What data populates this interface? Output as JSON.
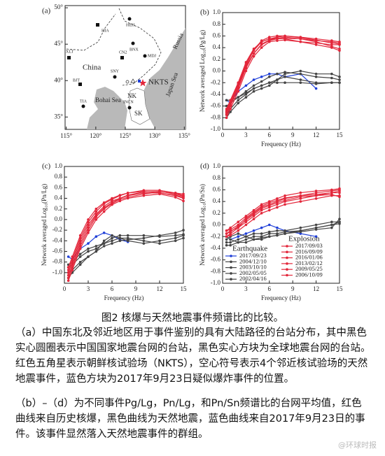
{
  "map": {
    "panel_label": "(a)",
    "xlim": [
      114.8,
      135.2
    ],
    "ylim": [
      33.3,
      50.3
    ],
    "xticks": [
      {
        "value": 115,
        "label": "115°"
      },
      {
        "value": 120,
        "label": "120°"
      },
      {
        "value": 125,
        "label": "125°"
      },
      {
        "value": 130,
        "label": "130°"
      },
      {
        "value": 135,
        "label": "135°"
      }
    ],
    "yticks": [
      {
        "value": 35,
        "label": "35°"
      },
      {
        "value": 40,
        "label": "40°"
      },
      {
        "value": 45,
        "label": "45°"
      },
      {
        "value": 50,
        "label": "50°"
      }
    ],
    "regions": [
      "China",
      "Russia",
      "Bohai Sea",
      "Japan Sea"
    ],
    "stations": [
      "HIA",
      "HEH",
      "BNX",
      "MDJ",
      "CN2",
      "XLT",
      "SNY",
      "BJT",
      "TIA",
      "INCN"
    ],
    "site_labels": [
      "NKTS",
      "NK",
      "SK"
    ]
  },
  "chart_data": [
    {
      "type": "line",
      "panel_label": "(b)",
      "xlabel": "Frequency (Hz)",
      "ylabel": "Network averaged Log₁₀(Pg/Lg)",
      "xlim": [
        0,
        15
      ],
      "xticks": [
        0,
        3,
        6,
        9,
        12,
        15
      ],
      "ylim": [
        -1,
        1
      ],
      "yticks": [
        {
          "value": -1,
          "label": "-1.0"
        },
        -0.8,
        -0.6,
        -0.4,
        -0.2,
        {
          "value": 0,
          "label": "0.0"
        },
        0.2,
        0.4,
        0.6,
        0.8,
        {
          "value": 1,
          "label": "1.0"
        }
      ],
      "x": [
        0.5,
        1,
        2,
        3,
        4,
        5,
        6,
        7,
        8,
        10,
        12,
        14,
        15
      ],
      "series": [
        {
          "color": "#1f3fd8",
          "values": [
            -0.5,
            -0.55,
            -0.35,
            -0.25,
            -0.15,
            -0.1,
            -0.05,
            -0.05,
            -0.1,
            -0.05,
            -0.3,
            null,
            null
          ]
        },
        {
          "color": "#444444",
          "values": [
            -0.6,
            -0.55,
            -0.45,
            -0.35,
            -0.25,
            -0.18,
            -0.1,
            -0.05,
            -0.02,
            -0.05,
            -0.1,
            -0.12,
            -0.15
          ]
        },
        {
          "color": "#444444",
          "values": [
            -0.75,
            -0.65,
            -0.5,
            -0.4,
            -0.3,
            -0.25,
            -0.2,
            -0.15,
            -0.1,
            -0.15,
            -0.2,
            -0.2,
            -0.2
          ]
        },
        {
          "color": "#444444",
          "values": [
            -0.5,
            -0.5,
            -0.45,
            -0.38,
            -0.3,
            -0.25,
            -0.2,
            -0.2,
            -0.2,
            -0.2,
            -0.22,
            -0.2,
            -0.2
          ]
        },
        {
          "color": "#444444",
          "values": [
            -0.8,
            -0.7,
            -0.55,
            -0.45,
            -0.35,
            -0.3,
            -0.25,
            -0.15,
            -0.05,
            0,
            -0.05,
            -0.05,
            -0.1
          ]
        },
        {
          "color": "#e3263a",
          "values": [
            -0.75,
            -0.6,
            -0.3,
            0.05,
            0.3,
            0.45,
            0.52,
            0.55,
            0.56,
            0.55,
            0.52,
            0.5,
            0.48
          ]
        },
        {
          "color": "#e3263a",
          "values": [
            -0.7,
            -0.55,
            -0.25,
            0.1,
            0.35,
            0.5,
            0.55,
            0.58,
            0.6,
            0.58,
            0.55,
            0.52,
            0.5
          ]
        },
        {
          "color": "#e3263a",
          "values": [
            -0.65,
            -0.5,
            -0.2,
            0.15,
            0.38,
            0.5,
            0.55,
            0.56,
            0.55,
            0.5,
            0.45,
            0.4,
            0.35
          ]
        },
        {
          "color": "#e3263a",
          "values": [
            -0.8,
            -0.65,
            -0.35,
            0,
            0.25,
            0.4,
            0.5,
            0.52,
            0.53,
            0.5,
            0.48,
            0.45,
            0.45
          ]
        },
        {
          "color": "#e3263a",
          "values": [
            -0.72,
            -0.58,
            -0.28,
            0.08,
            0.3,
            0.46,
            0.53,
            0.56,
            0.58,
            0.55,
            0.5,
            0.42,
            0.38
          ]
        },
        {
          "color": "#e3263a",
          "values": [
            -0.68,
            -0.52,
            -0.22,
            0.12,
            0.36,
            0.52,
            0.58,
            0.6,
            0.6,
            0.57,
            0.53,
            0.48,
            0.46
          ]
        }
      ]
    },
    {
      "type": "line",
      "panel_label": "(c)",
      "xlabel": "Frequency (Hz)",
      "ylabel": "Network averaged Log₁₀(Pn/Lg)",
      "xlim": [
        0,
        15
      ],
      "xticks": [
        0,
        3,
        6,
        9,
        12,
        15
      ],
      "ylim": [
        -1.2,
        1
      ],
      "yticks": [
        {
          "value": -1,
          "label": "-1.0"
        },
        -0.8,
        -0.6,
        -0.4,
        -0.2,
        {
          "value": 0,
          "label": "0.0"
        },
        0.2,
        0.4,
        0.6,
        0.8,
        {
          "value": 1,
          "label": "1.0"
        }
      ],
      "x": [
        0.5,
        1,
        2,
        3,
        4,
        5,
        6,
        7,
        8,
        10,
        12,
        14,
        15
      ],
      "series": [
        {
          "color": "#1f3fd8",
          "values": [
            -0.7,
            -0.75,
            -0.55,
            -0.45,
            -0.32,
            -0.25,
            -0.3,
            -0.38,
            -0.42,
            null,
            null,
            null,
            null
          ]
        },
        {
          "color": "#444444",
          "values": [
            -1.1,
            -1,
            -0.85,
            -0.7,
            -0.6,
            -0.5,
            -0.45,
            -0.4,
            -0.38,
            -0.35,
            -0.3,
            -0.25,
            -0.2
          ]
        },
        {
          "color": "#444444",
          "values": [
            -0.9,
            -0.85,
            -0.7,
            -0.6,
            -0.55,
            -0.45,
            -0.35,
            -0.3,
            -0.3,
            -0.3,
            -0.32,
            -0.3,
            -0.28
          ]
        },
        {
          "color": "#444444",
          "values": [
            -1,
            -0.95,
            -0.8,
            -0.7,
            -0.6,
            -0.4,
            -0.3,
            -0.35,
            -0.4,
            -0.45,
            -0.4,
            -0.35,
            -0.3
          ]
        },
        {
          "color": "#444444",
          "values": [
            -0.85,
            -0.8,
            -0.65,
            -0.55,
            -0.5,
            -0.45,
            -0.4,
            -0.35,
            -0.35,
            -0.4,
            -0.45,
            -0.4,
            -0.35
          ]
        },
        {
          "color": "#e3263a",
          "values": [
            -1,
            -0.8,
            -0.4,
            -0.1,
            0.1,
            0.25,
            0.35,
            0.4,
            0.45,
            0.5,
            0.5,
            0.45,
            0.4
          ]
        },
        {
          "color": "#e3263a",
          "values": [
            -1.1,
            -0.9,
            -0.5,
            -0.2,
            0.05,
            0.2,
            0.3,
            0.38,
            0.42,
            0.48,
            0.52,
            0.5,
            0.48
          ]
        },
        {
          "color": "#e3263a",
          "values": [
            -0.95,
            -0.75,
            -0.35,
            -0.05,
            0.15,
            0.3,
            0.38,
            0.45,
            0.5,
            0.55,
            0.55,
            0.5,
            0.45
          ]
        },
        {
          "color": "#e3263a",
          "values": [
            -1.15,
            -0.95,
            -0.55,
            -0.25,
            0,
            0.15,
            0.28,
            0.35,
            0.4,
            0.45,
            0.48,
            0.42,
            0.35
          ]
        },
        {
          "color": "#e3263a",
          "values": [
            -1.05,
            -0.85,
            -0.45,
            -0.15,
            0.08,
            0.22,
            0.32,
            0.4,
            0.46,
            0.52,
            0.53,
            0.48,
            0.44
          ]
        },
        {
          "color": "#e3263a",
          "values": [
            -0.9,
            -0.7,
            -0.3,
            0,
            0.2,
            0.32,
            0.4,
            0.46,
            0.5,
            0.53,
            0.5,
            0.46,
            0.42
          ]
        }
      ]
    },
    {
      "type": "line",
      "panel_label": "(d)",
      "xlabel": "Frequency (Hz)",
      "ylabel": "Network averaged Log₁₀(Pn/Sn)",
      "xlim": [
        0,
        15
      ],
      "xticks": [
        0,
        3,
        6,
        9,
        12,
        15
      ],
      "ylim": [
        -1,
        1
      ],
      "yticks": [
        {
          "value": -1,
          "label": "-1.0"
        },
        -0.8,
        -0.6,
        -0.4,
        -0.2,
        {
          "value": 0,
          "label": "0.0"
        },
        0.2,
        0.4,
        0.6,
        0.8,
        {
          "value": 1,
          "label": "1.0"
        }
      ],
      "x": [
        0.5,
        1,
        2,
        3,
        4,
        5,
        6,
        7,
        8,
        10,
        12,
        14,
        15
      ],
      "legend_titles": [
        "Earthquake",
        "Explosion"
      ],
      "series": [
        {
          "name": "2017/09/23",
          "color": "#1f3fd8",
          "values": [
            -0.2,
            -0.25,
            -0.2,
            -0.15,
            -0.1,
            -0.05,
            0,
            -0.05,
            -0.1,
            -0.15,
            -0.2,
            null,
            null
          ]
        },
        {
          "name": "2004/12/10",
          "color": "#444444",
          "values": [
            -0.3,
            -0.3,
            -0.25,
            -0.2,
            -0.15,
            -0.15,
            -0.12,
            -0.1,
            -0.1,
            -0.05,
            0,
            0.05,
            0.05
          ]
        },
        {
          "name": "2003/10/10",
          "color": "#444444",
          "values": [
            -0.2,
            -0.25,
            -0.3,
            -0.25,
            -0.2,
            -0.2,
            -0.15,
            -0.15,
            -0.12,
            -0.1,
            -0.05,
            0,
            0.02
          ]
        },
        {
          "name": "2002/05/05",
          "color": "#444444",
          "values": [
            -0.35,
            -0.35,
            -0.3,
            -0.3,
            -0.25,
            -0.22,
            -0.2,
            -0.18,
            -0.15,
            -0.1,
            -0.05,
            0,
            0.05
          ]
        },
        {
          "name": "2002/04/16",
          "color": "#444444",
          "values": [
            -0.25,
            -0.2,
            -0.15,
            -0.2,
            -0.25,
            -0.25,
            -0.2,
            -0.18,
            -0.15,
            -0.12,
            -0.08,
            -0.05,
            0.1
          ]
        },
        {
          "name": "2017/09/03",
          "color": "#e3263a",
          "values": [
            -0.15,
            -0.1,
            -0.05,
            0.05,
            0.15,
            0.25,
            0.3,
            0.35,
            0.4,
            0.45,
            0.5,
            0.55,
            0.55
          ]
        },
        {
          "name": "2016/09/09",
          "color": "#e3263a",
          "values": [
            -0.1,
            -0.05,
            0.05,
            0.15,
            0.25,
            0.35,
            0.4,
            0.45,
            0.5,
            0.55,
            0.58,
            0.6,
            0.62
          ]
        },
        {
          "name": "2016/01/06",
          "color": "#e3263a",
          "values": [
            -0.2,
            -0.15,
            -0.05,
            0.1,
            0.2,
            0.3,
            0.35,
            0.4,
            0.45,
            0.5,
            0.52,
            0.55,
            0.58
          ]
        },
        {
          "name": "2013/02/12",
          "color": "#e3263a",
          "values": [
            -0.2,
            -0.18,
            -0.1,
            0,
            0.1,
            0.2,
            0.25,
            0.3,
            0.35,
            0.4,
            0.45,
            0.5,
            0.5
          ]
        },
        {
          "name": "2009/05/25",
          "color": "#e3263a",
          "values": [
            -0.15,
            -0.12,
            -0.02,
            0.08,
            0.18,
            0.28,
            0.33,
            0.38,
            0.42,
            0.48,
            0.5,
            0.52,
            0.48
          ]
        },
        {
          "name": "2006/10/09",
          "color": "#e3263a",
          "values": [
            -0.1,
            -0.08,
            0,
            0.12,
            0.22,
            0.32,
            0.38,
            0.42,
            0.46,
            0.5,
            0.55,
            0.58,
            0.6
          ]
        }
      ]
    }
  ],
  "caption": {
    "title": "图2 核爆与天然地震事件频谱比的比较。",
    "paragraphs": [
      "（a）中国东北及邻近地区用于事件鉴别的具有大陆路径的台站分布，其中黑色实心圆圈表示中国国家地震台网的台站，黑色实心方块为全球地震台网的台站。红色五角星表示朝鲜核试验场（NKTS），空心符号表示4个邻近核试验场的天然地震事件，蓝色方块为2017年9月23日疑似爆炸事件的位置。",
      "（b）–（d）为不同事件Pg/Lg，Pn/Lg，和Pn/Sn频谱比的台网平均值，红色曲线来自历史核爆，黑色曲线为天然地震，蓝色曲线来自2017年9月23日的事件。该事件显然落入天然地震事件的群组。"
    ]
  },
  "watermark": "@环球时报"
}
